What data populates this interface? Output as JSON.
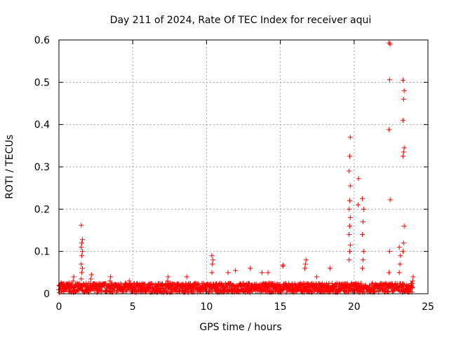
{
  "chart_data": {
    "type": "scatter",
    "title": "Day 211 of 2024, Rate Of TEC Index for receiver aqui",
    "xlabel": "GPS time / hours",
    "ylabel": "ROTI / TECUs",
    "xlim": [
      0,
      25
    ],
    "ylim": [
      0,
      0.6
    ],
    "x_ticks": [
      0,
      5,
      10,
      15,
      20,
      25
    ],
    "y_ticks": [
      0,
      0.1,
      0.2,
      0.3,
      0.4,
      0.5,
      0.6
    ],
    "grid": true,
    "marker": "plus",
    "color": "#ff0000",
    "baseline_band": {
      "x_range": [
        0,
        24
      ],
      "y_range": [
        0.003,
        0.025
      ]
    },
    "peaks": [
      {
        "x": 0.1,
        "values": [
          0.018,
          0.022,
          0.026
        ]
      },
      {
        "x": 1.0,
        "values": [
          0.03,
          0.04
        ]
      },
      {
        "x": 1.55,
        "values": [
          0.035,
          0.05,
          0.06,
          0.07,
          0.09,
          0.1,
          0.11,
          0.12,
          0.128,
          0.162
        ]
      },
      {
        "x": 2.2,
        "values": [
          0.035,
          0.045
        ]
      },
      {
        "x": 3.5,
        "values": [
          0.03,
          0.04
        ]
      },
      {
        "x": 4.8,
        "values": [
          0.03
        ]
      },
      {
        "x": 7.4,
        "values": [
          0.03,
          0.04
        ]
      },
      {
        "x": 8.7,
        "values": [
          0.04
        ]
      },
      {
        "x": 10.4,
        "values": [
          0.05,
          0.07,
          0.08,
          0.09
        ]
      },
      {
        "x": 11.5,
        "values": [
          0.05
        ]
      },
      {
        "x": 12.0,
        "values": [
          0.055
        ]
      },
      {
        "x": 13.0,
        "values": [
          0.06
        ]
      },
      {
        "x": 13.8,
        "values": [
          0.05
        ]
      },
      {
        "x": 14.2,
        "values": [
          0.05
        ]
      },
      {
        "x": 15.2,
        "values": [
          0.065,
          0.068
        ]
      },
      {
        "x": 16.7,
        "values": [
          0.06,
          0.07,
          0.08
        ]
      },
      {
        "x": 17.5,
        "values": [
          0.04
        ]
      },
      {
        "x": 18.4,
        "values": [
          0.06
        ]
      },
      {
        "x": 19.7,
        "values": [
          0.08,
          0.1,
          0.115,
          0.14,
          0.16,
          0.18,
          0.2,
          0.22,
          0.255,
          0.29,
          0.325,
          0.37
        ]
      },
      {
        "x": 20.3,
        "values": [
          0.21,
          0.272
        ]
      },
      {
        "x": 20.6,
        "values": [
          0.06,
          0.08,
          0.1,
          0.14,
          0.17,
          0.2,
          0.225
        ]
      },
      {
        "x": 22.4,
        "values": [
          0.05,
          0.1,
          0.222,
          0.388,
          0.506,
          0.59,
          0.593
        ]
      },
      {
        "x": 23.1,
        "values": [
          0.05,
          0.07,
          0.09,
          0.11
        ]
      },
      {
        "x": 23.35,
        "values": [
          0.1,
          0.12,
          0.16,
          0.325,
          0.335,
          0.345,
          0.41,
          0.46,
          0.48,
          0.505
        ]
      },
      {
        "x": 24.0,
        "values": [
          0.03,
          0.04
        ]
      }
    ]
  }
}
